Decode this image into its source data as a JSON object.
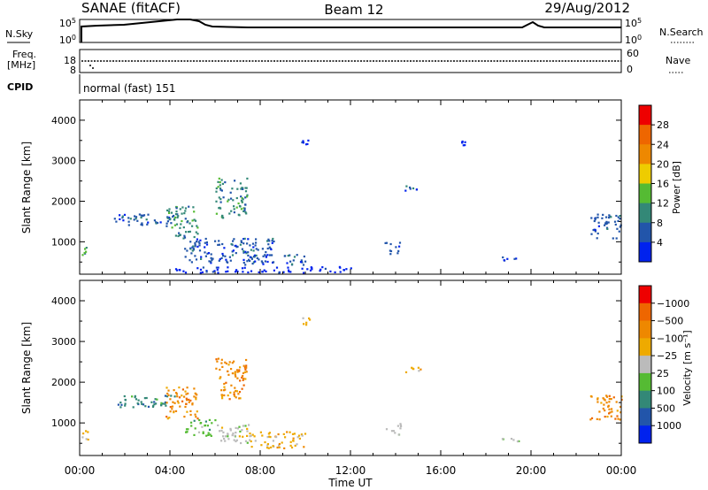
{
  "header": {
    "station": "SANAE (fitACF)",
    "beam": "Beam 12",
    "date": "29/Aug/2012"
  },
  "nsky_panel": {
    "left_label": "N.Sky",
    "right_label": "N.Search",
    "left_ticks": [
      "10^5",
      "10^0"
    ],
    "right_ticks": [
      "10^5",
      "10^0"
    ]
  },
  "freq_panel": {
    "left_label_1": "Freq.",
    "left_label_2": "[MHz]",
    "right_label": "Nave",
    "left_ticks": [
      "18",
      "8"
    ],
    "right_ticks": [
      "60",
      "0"
    ]
  },
  "cpid": {
    "label": "CPID",
    "value": "normal (fast) 151"
  },
  "chart_data": [
    {
      "type": "heatmap",
      "name": "power",
      "ylabel": "Slant Range [km]",
      "xlabel": "",
      "ylim": [
        200,
        4500
      ],
      "yticks": [
        1000,
        2000,
        3000,
        4000
      ],
      "colorbar": {
        "label": "Power [dB]",
        "ticks": [
          "4",
          "8",
          "12",
          "16",
          "20",
          "24",
          "28"
        ],
        "colors": [
          "#0022ee",
          "#2255aa",
          "#338877",
          "#55bb33",
          "#eecc00",
          "#ee8800",
          "#ee6600",
          "#ee0000"
        ]
      },
      "regions": [
        {
          "t0": 0.0,
          "t1": 0.4,
          "r0": 600,
          "r1": 900,
          "level": 2
        },
        {
          "t0": 1.5,
          "t1": 4.2,
          "r0": 1400,
          "r1": 1700,
          "level": 1
        },
        {
          "t0": 3.8,
          "t1": 5.2,
          "r0": 1100,
          "r1": 1900,
          "level": 2
        },
        {
          "t0": 4.6,
          "t1": 8.6,
          "r0": 500,
          "r1": 1100,
          "level": 1
        },
        {
          "t0": 6.0,
          "t1": 7.4,
          "r0": 1600,
          "r1": 2600,
          "level": 2
        },
        {
          "t0": 7.2,
          "t1": 10.0,
          "r0": 450,
          "r1": 700,
          "level": 1
        },
        {
          "t0": 14.4,
          "t1": 15.1,
          "r0": 2200,
          "r1": 2400,
          "level": 1
        },
        {
          "t0": 13.5,
          "t1": 14.2,
          "r0": 700,
          "r1": 1000,
          "level": 1
        },
        {
          "t0": 18.5,
          "t1": 19.6,
          "r0": 550,
          "r1": 650,
          "level": 1
        },
        {
          "t0": 22.6,
          "t1": 24.0,
          "r0": 1100,
          "r1": 1700,
          "level": 1
        },
        {
          "t0": 4.0,
          "t1": 12.0,
          "r0": 250,
          "r1": 400,
          "level": 0
        },
        {
          "t0": 9.8,
          "t1": 10.2,
          "r0": 3400,
          "r1": 3600,
          "level": 0
        },
        {
          "t0": 16.9,
          "t1": 17.1,
          "r0": 3400,
          "r1": 3500,
          "level": 0
        }
      ]
    },
    {
      "type": "heatmap",
      "name": "velocity",
      "ylabel": "Slant Range [km]",
      "xlabel": "Time UT",
      "ylim": [
        200,
        4500
      ],
      "yticks": [
        1000,
        2000,
        3000,
        4000
      ],
      "xticks": [
        "00:00",
        "04:00",
        "08:00",
        "12:00",
        "16:00",
        "20:00",
        "00:00"
      ],
      "colorbar": {
        "label": "Velocity [m s⁻¹]",
        "ticks": [
          "1000",
          "500",
          "100",
          "25",
          "−25",
          "−100",
          "−500",
          "−1000"
        ],
        "colors": [
          "#0022ee",
          "#2255aa",
          "#338877",
          "#55bb33",
          "#bbbbbb",
          "#eeaa00",
          "#ee8800",
          "#ee6600",
          "#ee0000"
        ]
      },
      "regions": [
        {
          "t0": 0.0,
          "t1": 0.4,
          "r0": 600,
          "r1": 900,
          "level": 5
        },
        {
          "t0": 1.5,
          "t1": 4.2,
          "r0": 1400,
          "r1": 1700,
          "level": 2
        },
        {
          "t0": 3.8,
          "t1": 5.2,
          "r0": 1100,
          "r1": 1900,
          "level": 6
        },
        {
          "t0": 4.6,
          "t1": 6.0,
          "r0": 700,
          "r1": 1100,
          "level": 3
        },
        {
          "t0": 6.0,
          "t1": 7.6,
          "r0": 500,
          "r1": 1000,
          "level": 4
        },
        {
          "t0": 7.5,
          "t1": 10.0,
          "r0": 400,
          "r1": 800,
          "level": 5
        },
        {
          "t0": 6.0,
          "t1": 7.4,
          "r0": 1600,
          "r1": 2600,
          "level": 6
        },
        {
          "t0": 14.4,
          "t1": 15.1,
          "r0": 2200,
          "r1": 2400,
          "level": 5
        },
        {
          "t0": 13.5,
          "t1": 14.2,
          "r0": 700,
          "r1": 1000,
          "level": 4
        },
        {
          "t0": 18.5,
          "t1": 19.6,
          "r0": 550,
          "r1": 650,
          "level": 4
        },
        {
          "t0": 22.6,
          "t1": 24.0,
          "r0": 1100,
          "r1": 1700,
          "level": 6
        },
        {
          "t0": 9.8,
          "t1": 10.2,
          "r0": 3400,
          "r1": 3600,
          "level": 5
        }
      ]
    }
  ]
}
